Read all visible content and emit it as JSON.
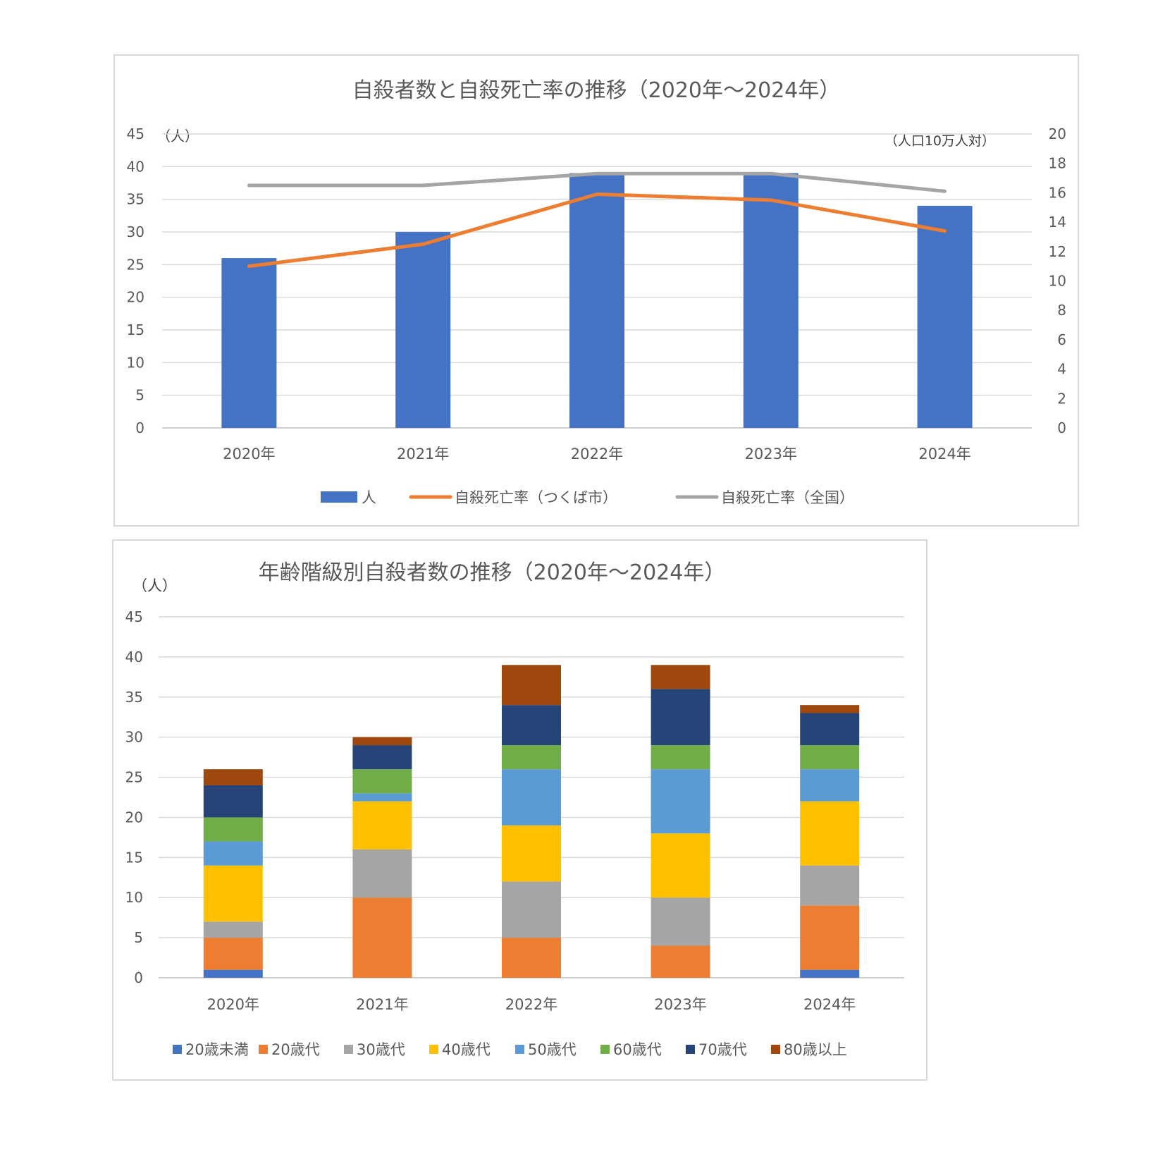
{
  "chart_data": [
    {
      "type": "bar+line",
      "title": "自殺者数と自殺死亡率の推移（2020年～2024年）",
      "categories": [
        "2020年",
        "2021年",
        "2022年",
        "2023年",
        "2024年"
      ],
      "y_left": {
        "unit": "（人）",
        "range": [
          0,
          45
        ],
        "ticks": [
          "0",
          "5",
          "10",
          "15",
          "20",
          "25",
          "30",
          "35",
          "40",
          "45"
        ]
      },
      "y_right": {
        "unit": "（人口10万人対）",
        "range": [
          0,
          20
        ],
        "ticks": [
          "0",
          "2",
          "4",
          "6",
          "8",
          "10",
          "12",
          "14",
          "16",
          "18",
          "20"
        ]
      },
      "grid": true,
      "legend_position": "bottom",
      "series": [
        {
          "name": "人",
          "kind": "bar",
          "axis": "left",
          "color": "#4472c4",
          "values": [
            26,
            30,
            39,
            39,
            34
          ]
        },
        {
          "name": "自殺死亡率（つくば市）",
          "kind": "line",
          "axis": "right",
          "color": "#ed7d31",
          "values": [
            11.0,
            12.5,
            15.9,
            15.5,
            13.4
          ]
        },
        {
          "name": "自殺死亡率（全国）",
          "kind": "line",
          "axis": "right",
          "color": "#a5a5a5",
          "values": [
            16.5,
            16.5,
            17.3,
            17.3,
            16.1
          ]
        }
      ]
    },
    {
      "type": "stacked-bar",
      "title": "年齢階級別自殺者数の推移（2020年～2024年）",
      "categories": [
        "2020年",
        "2021年",
        "2022年",
        "2023年",
        "2024年"
      ],
      "y": {
        "unit": "（人）",
        "range": [
          0,
          45
        ],
        "ticks": [
          "0",
          "5",
          "10",
          "15",
          "20",
          "25",
          "30",
          "35",
          "40",
          "45"
        ]
      },
      "grid": true,
      "legend_position": "bottom",
      "series": [
        {
          "name": "20歳未満",
          "color": "#4472c4",
          "values": [
            1,
            0,
            0,
            0,
            1
          ]
        },
        {
          "name": "20歳代",
          "color": "#ed7d31",
          "values": [
            4,
            10,
            5,
            4,
            8
          ]
        },
        {
          "name": "30歳代",
          "color": "#a5a5a5",
          "values": [
            2,
            6,
            7,
            6,
            5
          ]
        },
        {
          "name": "40歳代",
          "color": "#ffc000",
          "values": [
            7,
            6,
            7,
            8,
            8
          ]
        },
        {
          "name": "50歳代",
          "color": "#5b9bd5",
          "values": [
            3,
            1,
            7,
            8,
            4
          ]
        },
        {
          "name": "60歳代",
          "color": "#70ad47",
          "values": [
            3,
            3,
            3,
            3,
            3
          ]
        },
        {
          "name": "70歳代",
          "color": "#264478",
          "values": [
            4,
            3,
            5,
            7,
            4
          ]
        },
        {
          "name": "80歳以上",
          "color": "#9e480e",
          "values": [
            2,
            1,
            5,
            3,
            1
          ]
        }
      ]
    }
  ]
}
